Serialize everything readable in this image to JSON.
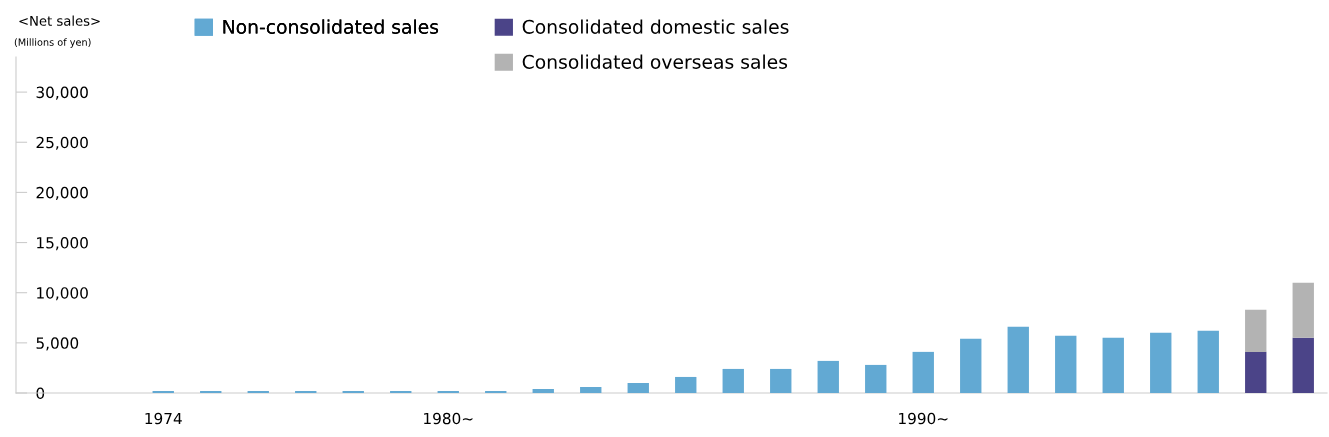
{
  "chart_data": {
    "type": "bar",
    "stacked": true,
    "ylabel": "<Net sales>",
    "annotations": [
      "(Millions of yen)"
    ],
    "categories": [
      "1974",
      null,
      null,
      null,
      null,
      null,
      "1980~",
      null,
      null,
      null,
      null,
      null,
      null,
      null,
      null,
      null,
      "1990~",
      null,
      null,
      null,
      null,
      null,
      null,
      null,
      null
    ],
    "series": [
      {
        "name": "Non-consolidated sales",
        "color": "#62a9d3",
        "values": [
          200,
          200,
          200,
          200,
          200,
          200,
          200,
          200,
          400,
          600,
          1000,
          1600,
          2400,
          2400,
          3200,
          2800,
          4100,
          5400,
          6600,
          5700,
          5500,
          6000,
          6200,
          null,
          null
        ]
      },
      {
        "name": "Consolidated domestic sales",
        "color": "#4b4488",
        "values": [
          null,
          null,
          null,
          null,
          null,
          null,
          null,
          null,
          null,
          null,
          null,
          null,
          null,
          null,
          null,
          null,
          null,
          null,
          null,
          null,
          null,
          null,
          null,
          4100,
          5500
        ]
      },
      {
        "name": "Consolidated overseas sales",
        "color": "#b3b3b3",
        "values": [
          null,
          null,
          null,
          null,
          null,
          null,
          null,
          null,
          null,
          null,
          null,
          null,
          null,
          null,
          null,
          null,
          null,
          null,
          null,
          null,
          null,
          null,
          null,
          4200,
          5500
        ]
      }
    ],
    "ylim": [
      0,
      33500
    ],
    "yticks": [
      0,
      {
        "value": 5000,
        "label": "5,000"
      },
      {
        "value": 10000,
        "label": "10,000"
      },
      {
        "value": 15000,
        "label": "15,000"
      },
      {
        "value": 20000,
        "label": "20,000"
      },
      {
        "value": 25000,
        "label": "25,000"
      },
      {
        "value": 30000,
        "label": "30,000"
      }
    ],
    "legend": "top",
    "grid": false
  }
}
